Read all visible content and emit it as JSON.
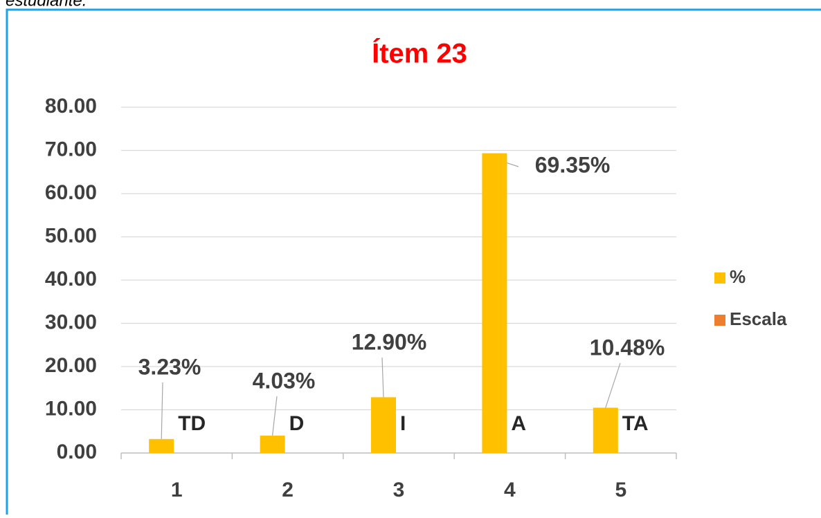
{
  "page_text": "estudiante.",
  "chart_data": {
    "type": "bar",
    "title": "Ítem 23",
    "categories": [
      "1",
      "2",
      "3",
      "4",
      "5"
    ],
    "series": [
      {
        "name": "%",
        "color": "#ffc000",
        "values": [
          3.23,
          4.03,
          12.9,
          69.35,
          10.48
        ],
        "value_labels": [
          "3.23%",
          "4.03%",
          "12.90%",
          "69.35%",
          "10.48%"
        ]
      },
      {
        "name": "Escala",
        "color": "#ed7d31",
        "labels": [
          "TD",
          "D",
          "I",
          "A",
          "TA"
        ]
      }
    ],
    "ylim": [
      0,
      80
    ],
    "yticks": [
      {
        "value": 0,
        "label": "0.00"
      },
      {
        "value": 10,
        "label": "10.00"
      },
      {
        "value": 20,
        "label": "20.00"
      },
      {
        "value": 30,
        "label": "30.00"
      },
      {
        "value": 40,
        "label": "40.00"
      },
      {
        "value": 50,
        "label": "50.00"
      },
      {
        "value": 60,
        "label": "60.00"
      },
      {
        "value": 70,
        "label": "70.00"
      },
      {
        "value": 80,
        "label": "80.00"
      }
    ],
    "grid": true,
    "legend": "right"
  }
}
